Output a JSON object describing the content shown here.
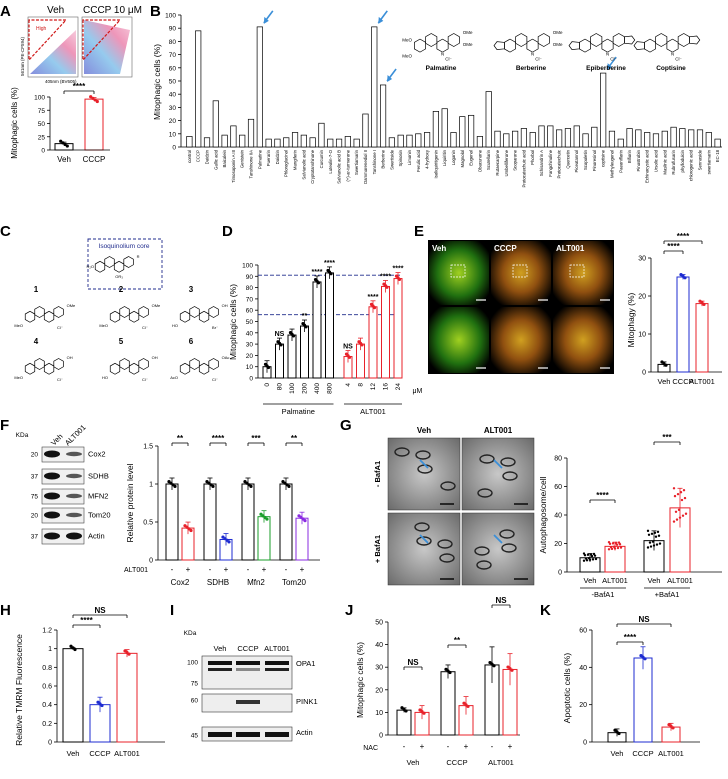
{
  "panels": {
    "A": {
      "letter": "A",
      "flow": {
        "titles": [
          "Veh",
          "CCCP 10 μM"
        ],
        "gate_label": "High",
        "y_axis": "561nm (PE-CF594)",
        "x_axis": "405nm (BV605)"
      },
      "chart_data": {
        "type": "bar",
        "categories": [
          "Veh",
          "CCCP"
        ],
        "values": [
          12,
          96
        ],
        "ylabel": "Mitophagic cells (%)",
        "ylim": [
          0,
          100
        ],
        "yticks": [
          0,
          25,
          50,
          75,
          100
        ],
        "significance": "****"
      }
    },
    "B": {
      "letter": "B",
      "chart_data": {
        "type": "bar",
        "ylabel": "Mitophagic cells (%)",
        "ylim": [
          0,
          100
        ],
        "yticks": [
          0,
          10,
          20,
          30,
          40,
          50,
          60,
          70,
          80,
          90,
          100
        ],
        "categories": [
          "control",
          "CCCP",
          "Daidzin",
          "Gallic acid",
          "Baicalein",
          "Timosaponin A III",
          "Genistein",
          "Tanshinone IIA",
          "Palmatine",
          "Puerarin",
          "Daidzin",
          "Phloroglucinol",
          "Mangiferin",
          "Salvianolic acid",
          "Cryptotanshinone",
          "Curcumin",
          "Luteolin-7-O",
          "Salvianolic acid B",
          "(+)-ar-turmerone",
          "Swertiamarin",
          "Dammarenediol II",
          "Tanshinone I",
          "Berberine",
          "Swertiside",
          "Spinosin",
          "Limonin",
          "Ferulic acid",
          "4-hydroxy",
          "Isoliquiritigenin",
          "Liquiritin",
          "Loganin",
          "Magnolol",
          "Eugenol",
          "Obacunone",
          "Scutellarin",
          "Rutaecarpine",
          "Umbelliferone",
          "Scoparone",
          "Protocatechuic acid",
          "Phorbol",
          "Schisandrin A",
          "Fangchinoline",
          "Protocatechuic",
          "Quercetin",
          "Piceatannol",
          "Scopoletin",
          "Pinoresinol",
          "coptisine",
          "Methyleugenol",
          "Paeoniflorin",
          "Bifiorin",
          "Pinostrobin",
          "Echinocystic acid",
          "Ursolic acid",
          "Maslinic acid",
          "Rubrofusarin",
          "phyllodulcin",
          "chlorogenic acid",
          "Sennoside",
          "swertiamarin",
          "EC-18"
        ],
        "values": [
          8,
          88,
          7,
          35,
          9,
          16,
          9,
          21,
          91,
          6,
          6,
          7,
          11,
          9,
          7,
          18,
          6,
          6,
          8,
          6,
          25,
          91,
          47,
          7,
          9,
          9,
          10,
          11,
          27,
          29,
          11,
          23,
          24,
          8,
          42,
          12,
          10,
          12,
          14,
          11,
          16,
          16,
          13,
          14,
          16,
          10,
          15,
          56,
          12,
          6,
          14,
          13,
          11,
          10,
          12,
          15,
          14,
          13,
          13,
          11,
          6
        ],
        "arrows_at": [
          "Palmatine",
          "Tanshinone I",
          "Berberine",
          "coptisine"
        ]
      },
      "structures": [
        "Palmatine",
        "Berberine",
        "Epiberberine",
        "Coptisine"
      ],
      "structure_labels": {
        "ome": "OMe",
        "meo": "MeO",
        "cl": "Cl⁻",
        "n": "N"
      }
    },
    "C": {
      "letter": "C",
      "core_label": "Isoquinolium core",
      "compound_numbers": [
        "1",
        "2",
        "3",
        "4",
        "5",
        "6"
      ],
      "labels": {
        "ome": "OMe",
        "meo": "MeO",
        "oh": "OH",
        "ho": "HO",
        "oac": "OAc",
        "aco": "AcO",
        "cl": "Cl⁻",
        "br": "Br⁻",
        "r": "R",
        "r1": "R₁",
        "r2o": "R₂O",
        "r3o": "OR₃"
      }
    },
    "D": {
      "letter": "D",
      "chart_data": {
        "type": "bar",
        "ylabel": "Mitophagic cells (%)",
        "ylim": [
          0,
          100
        ],
        "yticks": [
          0,
          10,
          20,
          30,
          40,
          50,
          60,
          70,
          80,
          90,
          100
        ],
        "groups": [
          {
            "name": "Palmatine",
            "doses": [
              "0",
              "80",
              "100",
              "200",
              "400",
              "800"
            ],
            "values": [
              10,
              30,
              38,
              46,
              85,
              93
            ],
            "sig": [
              "",
              "NS",
              "",
              "**",
              "****",
              "****"
            ]
          },
          {
            "name": "ALT001",
            "doses": [
              "4",
              "8",
              "12",
              "16",
              "24"
            ],
            "values": [
              19,
              30,
              63,
              81,
              88
            ],
            "sig": [
              "NS",
              "",
              "****",
              "****",
              "****"
            ]
          }
        ],
        "unit": "μM",
        "ref_lines": [
          91,
          56
        ]
      }
    },
    "E": {
      "letter": "E",
      "image_labels": [
        "Veh",
        "CCCP",
        "ALT001"
      ],
      "chart_data": {
        "type": "bar",
        "categories": [
          "Veh",
          "CCCP",
          "ALT001"
        ],
        "values": [
          2,
          25,
          18
        ],
        "ylabel": "Mitophagy (%)",
        "ylim": [
          0,
          30
        ],
        "yticks": [
          0,
          10,
          20,
          30
        ],
        "sig": [
          "****",
          "****"
        ]
      }
    },
    "F": {
      "letter": "F",
      "blot": {
        "kda": "KDa",
        "lanes": [
          "Veh",
          "ALT001"
        ],
        "markers": [
          "20",
          "37",
          "75",
          "20",
          "37"
        ],
        "proteins": [
          "Cox2",
          "SDHB",
          "MFN2",
          "Tom20",
          "Actin"
        ]
      },
      "chart_data": {
        "type": "bar",
        "categories": [
          "Cox2",
          "SDHB",
          "Mfn2",
          "Tom20"
        ],
        "series": [
          {
            "name": "-",
            "values": [
              1.0,
              1.0,
              1.0,
              1.0
            ]
          },
          {
            "name": "+",
            "values": [
              0.42,
              0.27,
              0.57,
              0.55
            ]
          }
        ],
        "ylabel": "Relative protein level",
        "ylim": [
          0,
          1.5
        ],
        "yticks": [
          "0",
          "0.5",
          "1",
          "1.5"
        ],
        "xprefix": "ALT001",
        "signs": [
          "-",
          "+"
        ],
        "sig": [
          "**",
          "****",
          "***",
          "**"
        ]
      }
    },
    "G": {
      "letter": "G",
      "col_labels": [
        "Veh",
        "ALT001"
      ],
      "row_labels": [
        "- BafA1",
        "+ BafA1"
      ],
      "chart_data": {
        "type": "bar",
        "categories": [
          "Veh",
          "ALT001",
          "Veh",
          "ALT001"
        ],
        "groups": [
          "-BafA1",
          "+BafA1"
        ],
        "values": [
          10,
          18,
          22,
          45
        ],
        "ylabel": "Autophagosome/cell",
        "ylim": [
          0,
          80
        ],
        "yticks": [
          0,
          20,
          40,
          60,
          80
        ],
        "sig": [
          "****",
          "***"
        ]
      }
    },
    "H": {
      "letter": "H",
      "chart_data": {
        "type": "bar",
        "categories": [
          "Veh",
          "CCCP",
          "ALT001"
        ],
        "values": [
          1.0,
          0.4,
          0.95
        ],
        "ylabel": "Relative TMRM Fluorescence",
        "ylim": [
          0,
          1.2
        ],
        "yticks": [
          "0",
          "0.2",
          "0.4",
          "0.6",
          "0.8",
          "1",
          "1.2"
        ],
        "sig": [
          "****",
          "NS"
        ]
      }
    },
    "I": {
      "letter": "I",
      "kda": "KDa",
      "lanes": [
        "Veh",
        "CCCP",
        "ALT001"
      ],
      "markers": [
        "100",
        "75",
        "60",
        "45"
      ],
      "proteins": [
        "OPA1",
        "PINK1",
        "Actin"
      ]
    },
    "J": {
      "letter": "J",
      "chart_data": {
        "type": "bar",
        "categories": [
          "Veh",
          "CCCP",
          "ALT001"
        ],
        "series": [
          {
            "name": "-",
            "values": [
              11,
              28,
              31
            ]
          },
          {
            "name": "+",
            "values": [
              10,
              13,
              29
            ]
          }
        ],
        "ylabel": "Mitophagic cells (%)",
        "ylim": [
          0,
          50
        ],
        "yticks": [
          0,
          10,
          20,
          30,
          40,
          50
        ],
        "xprefix": "NAC",
        "signs": [
          "-",
          "+"
        ],
        "sig": [
          "NS",
          "**",
          "NS"
        ]
      }
    },
    "K": {
      "letter": "K",
      "chart_data": {
        "type": "bar",
        "categories": [
          "Veh",
          "CCCP",
          "ALT001"
        ],
        "values": [
          5,
          45,
          8
        ],
        "ylabel": "Apoptotic cells (%)",
        "ylim": [
          0,
          60
        ],
        "yticks": [
          0,
          20,
          40,
          60
        ],
        "sig": [
          "****",
          "NS"
        ]
      }
    }
  },
  "colors": {
    "black": "#000000",
    "red": "#e8212a",
    "blue": "#1d2bd1",
    "green": "#1a9e2a",
    "purple": "#8a2be2",
    "navy": "#1f2b8c",
    "arrow": "#3b8fd8",
    "gate": "#d01818"
  }
}
